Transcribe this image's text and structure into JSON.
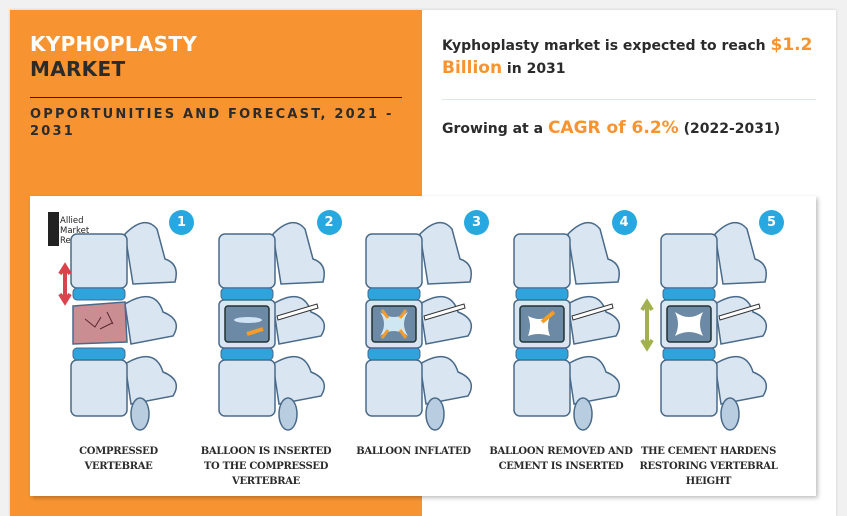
{
  "header": {
    "title_line1": "KYPHOPLASTY",
    "title_line2": "MARKET",
    "subtitle": "OPPORTUNITIES AND FORECAST, 2021 - 2031"
  },
  "stats": {
    "market": {
      "prefix": "Kyphoplasty market is expected to reach ",
      "highlight": "$1.2 Billion",
      "suffix": " in 2031"
    },
    "cagr": {
      "prefix": "Growing at a ",
      "highlight": "CAGR of 6.2%",
      "suffix": " (2022-2031)"
    }
  },
  "logo": {
    "line1": "Allied",
    "line2": "Market",
    "line3": "Research"
  },
  "steps": [
    {
      "number": "1",
      "caption": "COMPRESSED VERTEBRAE"
    },
    {
      "number": "2",
      "caption": "BALLOON IS INSERTED TO THE COMPRESSED VERTEBRAE"
    },
    {
      "number": "3",
      "caption": "BALLOON INFLATED"
    },
    {
      "number": "4",
      "caption": "BALLOON REMOVED AND CEMENT IS INSERTED"
    },
    {
      "number": "5",
      "caption": "THE CEMENT HARDENS RESTORING VERTEBRAL HEIGHT"
    }
  ],
  "colors": {
    "accent": "#f79431",
    "badge": "#28a8e0",
    "bone": "#d9e6f2",
    "disc": "#2ea3dc"
  }
}
